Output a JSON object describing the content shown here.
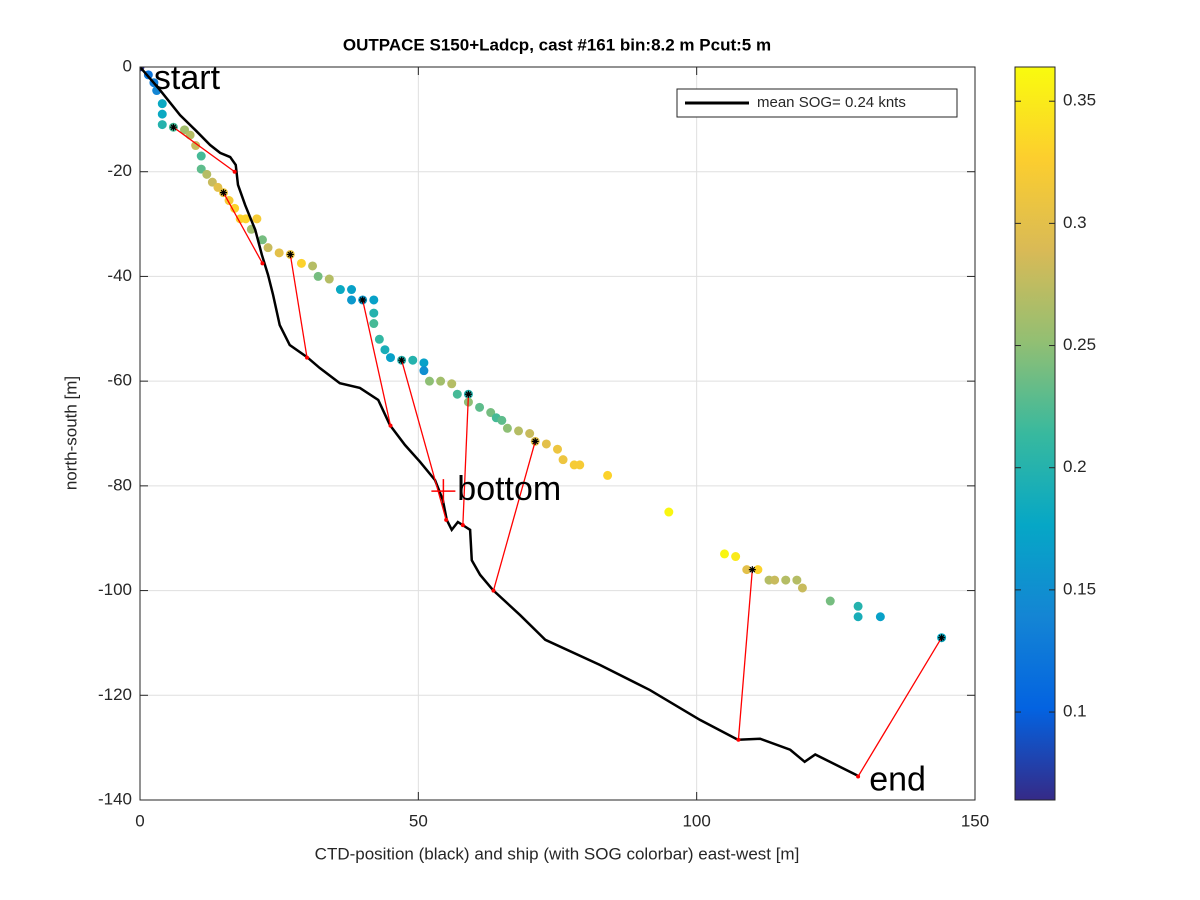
{
  "chart_data": {
    "type": "scatter",
    "title": "OUTPACE S150+Ladcp, cast #161 bin:8.2 m  Pcut:5 m",
    "xlabel": "CTD-position (black) and ship (with SOG colorbar) east-west [m]",
    "ylabel": "north-south [m]",
    "xlim": [
      0,
      150
    ],
    "ylim": [
      -140,
      0
    ],
    "xticks": [
      0,
      50,
      100,
      150
    ],
    "yticks": [
      0,
      -20,
      -40,
      -60,
      -80,
      -100,
      -120,
      -140
    ],
    "grid": true,
    "legend": {
      "label": "mean SOG=  0.24 knts",
      "location": "northeast"
    },
    "ctd": {
      "color": "#000000",
      "x": [
        0,
        3.6,
        7.2,
        9.9,
        12.6,
        14.4,
        16.2,
        17.2,
        17.6,
        18.9,
        20.7,
        21.9,
        23,
        23.9,
        25.1,
        26.9,
        30,
        32.3,
        35.9,
        39.5,
        42.8,
        44.9,
        47.6,
        50.3,
        53,
        54.4,
        55.1,
        56,
        57.1,
        59.3,
        59.6,
        61.1,
        63.4,
        68.3,
        72.8,
        82.6,
        91.6,
        100.6,
        107.4,
        111.4,
        116.8,
        119.4,
        121.3,
        129
      ],
      "y": [
        0,
        -4.4,
        -9.2,
        -12,
        -14.9,
        -16.4,
        -17.2,
        -18.7,
        -22.5,
        -26.4,
        -31.1,
        -35.9,
        -39.7,
        -43.5,
        -49.3,
        -53.1,
        -55.4,
        -57.5,
        -60.4,
        -61.3,
        -63.6,
        -68.4,
        -72.2,
        -75.4,
        -78.9,
        -82.7,
        -86.5,
        -88.4,
        -86.9,
        -88.4,
        -94.2,
        -97,
        -99.9,
        -104.7,
        -109.4,
        -114.2,
        -119,
        -124.7,
        -128.5,
        -128.3,
        -130.4,
        -132.7,
        -131.3,
        -135.4
      ]
    },
    "ship": {
      "x": [
        0,
        1.5,
        2.5,
        3,
        4,
        4,
        4,
        6,
        8,
        9,
        10,
        11,
        11,
        12,
        13,
        14,
        15,
        16,
        17,
        18,
        19,
        21,
        20,
        22,
        23,
        25,
        27,
        29,
        31,
        32,
        34,
        36,
        38,
        38,
        40,
        42,
        42,
        42,
        43,
        44,
        45,
        47,
        49,
        51,
        51,
        52,
        54,
        56,
        57,
        59,
        59,
        61,
        63,
        64,
        65,
        66,
        68,
        70,
        71,
        73,
        75,
        76,
        78,
        79,
        84,
        95,
        105,
        107,
        109,
        111,
        113,
        114,
        116,
        118,
        119,
        124,
        129,
        129,
        133,
        144
      ],
      "y": [
        0,
        -1.5,
        -3,
        -4.5,
        -7,
        -9,
        -11,
        -11.5,
        -12,
        -13,
        -15,
        -17,
        -19.5,
        -20.5,
        -22,
        -23,
        -24,
        -25.5,
        -27,
        -29,
        -29,
        -29,
        -31,
        -33,
        -34.5,
        -35.5,
        -35.8,
        -37.5,
        -38,
        -40,
        -40.5,
        -42.5,
        -42.5,
        -44.5,
        -44.5,
        -44.5,
        -47,
        -49,
        -52,
        -54,
        -55.5,
        -56,
        -56,
        -56.5,
        -58,
        -60,
        -60,
        -60.5,
        -62.5,
        -62.5,
        -64,
        -65,
        -66,
        -67,
        -67.5,
        -69,
        -69.5,
        -70,
        -71.5,
        -72,
        -73,
        -75,
        -76,
        -76,
        -78,
        -85,
        -93,
        -93.5,
        -96,
        -96,
        -98,
        -98,
        -98,
        -98,
        -99.5,
        -102,
        -103,
        -105,
        -105,
        -109
      ],
      "sog": [
        0.07,
        0.12,
        0.13,
        0.14,
        0.18,
        0.18,
        0.2,
        0.22,
        0.26,
        0.27,
        0.28,
        0.22,
        0.23,
        0.27,
        0.28,
        0.3,
        0.31,
        0.32,
        0.33,
        0.33,
        0.33,
        0.32,
        0.26,
        0.24,
        0.28,
        0.3,
        0.31,
        0.33,
        0.27,
        0.24,
        0.27,
        0.18,
        0.17,
        0.16,
        0.16,
        0.17,
        0.2,
        0.22,
        0.21,
        0.19,
        0.17,
        0.2,
        0.2,
        0.17,
        0.15,
        0.25,
        0.26,
        0.27,
        0.22,
        0.2,
        0.25,
        0.23,
        0.24,
        0.22,
        0.23,
        0.25,
        0.27,
        0.28,
        0.3,
        0.3,
        0.31,
        0.31,
        0.32,
        0.32,
        0.33,
        0.36,
        0.36,
        0.35,
        0.3,
        0.33,
        0.27,
        0.28,
        0.27,
        0.27,
        0.28,
        0.24,
        0.2,
        0.19,
        0.17,
        0.18
      ]
    },
    "links": {
      "color": "#ff0000",
      "ship_x": [
        6,
        15,
        27,
        40,
        47,
        59,
        71,
        110,
        144
      ],
      "ship_y": [
        -11.5,
        -24,
        -35.8,
        -44.5,
        -56,
        -62.5,
        -71.5,
        -96,
        -109
      ],
      "ctd_x": [
        17,
        22,
        30,
        45,
        55,
        58,
        63.5,
        107.5,
        129
      ],
      "ctd_y": [
        -20,
        -37.5,
        -55.5,
        -68.5,
        -86.5,
        -87.5,
        -100,
        -128.5,
        -135.5
      ]
    },
    "bottom_marker": {
      "x": 54.5,
      "y": -81,
      "color": "#ff0000"
    },
    "annotations": [
      {
        "text": "start",
        "x": 2.5,
        "y": -2.5
      },
      {
        "text": "bottom",
        "x": 57,
        "y": -81
      },
      {
        "text": "end",
        "x": 131,
        "y": -136.5
      }
    ],
    "colorbar": {
      "lim": [
        0.064,
        0.364
      ],
      "ticks": [
        0.1,
        0.15,
        0.2,
        0.25,
        0.3,
        0.35
      ],
      "colormap": [
        "#352a87",
        "#0363e1",
        "#1485d4",
        "#06a7c6",
        "#38b99e",
        "#92bf73",
        "#d9ba56",
        "#fcce2e",
        "#f9fb0e"
      ]
    }
  }
}
